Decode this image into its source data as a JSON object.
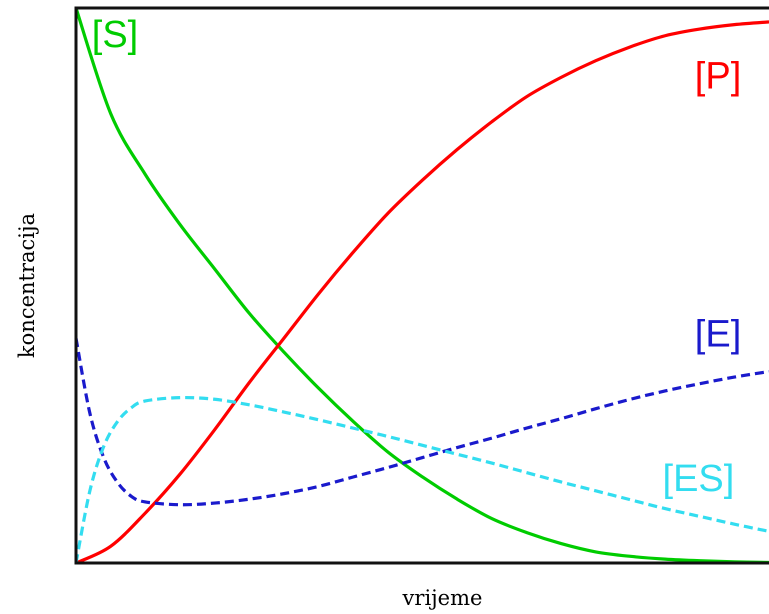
{
  "chart_data": {
    "type": "line",
    "title": "",
    "xlabel": "vrijeme",
    "ylabel": "koncentracija",
    "xlim": [
      0,
      1
    ],
    "ylim": [
      0,
      1
    ],
    "grid": false,
    "show_ticks": false,
    "series": [
      {
        "name": "[S]",
        "color": "#00cc00",
        "style": "solid",
        "x": [
          0,
          0.05,
          0.1,
          0.15,
          0.2,
          0.25,
          0.3,
          0.35,
          0.4,
          0.45,
          0.5,
          0.55,
          0.6,
          0.65,
          0.7,
          0.75,
          0.8,
          0.85,
          0.9,
          0.95,
          1.0
        ],
        "values": [
          1.0,
          0.81,
          0.7,
          0.61,
          0.53,
          0.45,
          0.38,
          0.315,
          0.255,
          0.2,
          0.155,
          0.115,
          0.08,
          0.055,
          0.035,
          0.02,
          0.012,
          0.007,
          0.004,
          0.002,
          0.001
        ]
      },
      {
        "name": "[P]",
        "color": "#ff0000",
        "style": "solid",
        "x": [
          0,
          0.05,
          0.1,
          0.15,
          0.2,
          0.25,
          0.3,
          0.35,
          0.4,
          0.45,
          0.5,
          0.55,
          0.6,
          0.65,
          0.7,
          0.75,
          0.8,
          0.85,
          0.9,
          0.95,
          1.0
        ],
        "values": [
          0.0,
          0.03,
          0.09,
          0.16,
          0.24,
          0.325,
          0.405,
          0.485,
          0.56,
          0.63,
          0.69,
          0.745,
          0.795,
          0.84,
          0.875,
          0.905,
          0.93,
          0.95,
          0.962,
          0.97,
          0.975
        ]
      },
      {
        "name": "[E]",
        "color": "#1a1acc",
        "style": "dashed",
        "x": [
          0,
          0.02,
          0.04,
          0.06,
          0.08,
          0.1,
          0.15,
          0.2,
          0.25,
          0.3,
          0.35,
          0.4,
          0.45,
          0.5,
          0.55,
          0.6,
          0.65,
          0.7,
          0.75,
          0.8,
          0.85,
          0.9,
          0.95,
          1.0
        ],
        "values": [
          0.405,
          0.27,
          0.19,
          0.145,
          0.12,
          0.11,
          0.105,
          0.108,
          0.115,
          0.125,
          0.138,
          0.155,
          0.172,
          0.19,
          0.208,
          0.225,
          0.243,
          0.26,
          0.278,
          0.295,
          0.31,
          0.323,
          0.335,
          0.345
        ]
      },
      {
        "name": "[ES]",
        "color": "#33ddf0",
        "style": "dashed",
        "x": [
          0,
          0.02,
          0.04,
          0.06,
          0.08,
          0.1,
          0.15,
          0.2,
          0.25,
          0.3,
          0.35,
          0.4,
          0.45,
          0.5,
          0.55,
          0.6,
          0.65,
          0.7,
          0.75,
          0.8,
          0.85,
          0.9,
          0.95,
          1.0
        ],
        "values": [
          0.0,
          0.13,
          0.21,
          0.255,
          0.28,
          0.292,
          0.298,
          0.295,
          0.285,
          0.272,
          0.258,
          0.243,
          0.228,
          0.212,
          0.196,
          0.18,
          0.163,
          0.146,
          0.13,
          0.114,
          0.098,
          0.084,
          0.07,
          0.057
        ]
      }
    ],
    "labels": [
      {
        "text": "[S]",
        "series": "[S]",
        "x": 0.03,
        "y": 0.93
      },
      {
        "text": "[P]",
        "series": "[P]",
        "x": 0.96,
        "y": 0.855
      },
      {
        "text": "[E]",
        "series": "[E]",
        "x": 0.96,
        "y": 0.39
      },
      {
        "text": "[ES]",
        "series": "[ES]",
        "x": 0.95,
        "y": 0.13
      }
    ]
  }
}
